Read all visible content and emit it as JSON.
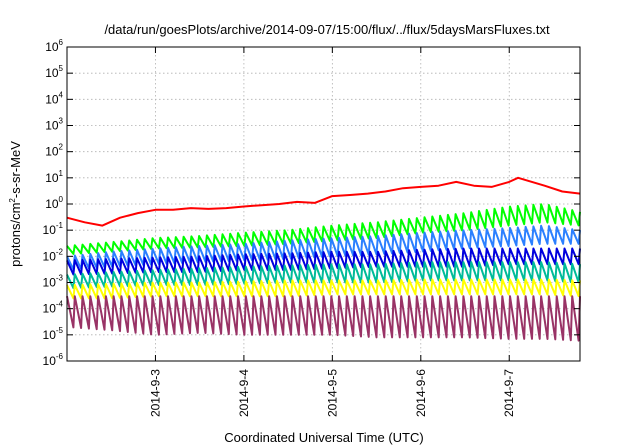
{
  "chart_data": {
    "type": "line",
    "title": "/data/run/goesPlots/archive/2014-09-07/15:00/flux/../flux/5daysMarsFluxes.txt",
    "xlabel": "Coordinated Universal Time (UTC)",
    "ylabel": "protons/cm2-s-sr-MeV",
    "ylabel_parts": [
      "protons/cm",
      "2",
      "-s-sr-MeV"
    ],
    "y_scale": "log",
    "ylim": [
      1e-06,
      1000000.0
    ],
    "y_ticks": [
      {
        "base": "10",
        "exp": "-6"
      },
      {
        "base": "10",
        "exp": "-5"
      },
      {
        "base": "10",
        "exp": "-4"
      },
      {
        "base": "10",
        "exp": "-3"
      },
      {
        "base": "10",
        "exp": "-2"
      },
      {
        "base": "10",
        "exp": "-1"
      },
      {
        "base": "10",
        "exp": "0"
      },
      {
        "base": "10",
        "exp": "1"
      },
      {
        "base": "10",
        "exp": "2"
      },
      {
        "base": "10",
        "exp": "3"
      },
      {
        "base": "10",
        "exp": "4"
      },
      {
        "base": "10",
        "exp": "5"
      },
      {
        "base": "10",
        "exp": "6"
      }
    ],
    "x_unit": "days since 2014-09-02 00:00 UTC",
    "xlim": [
      0.0,
      5.8
    ],
    "x_ticks": [
      {
        "value": 1.0,
        "label": "2014-9-3"
      },
      {
        "value": 2.0,
        "label": "2014-9-4"
      },
      {
        "value": 3.0,
        "label": "2014-9-5"
      },
      {
        "value": 4.0,
        "label": "2014-9-6"
      },
      {
        "value": 5.0,
        "label": "2014-9-7"
      }
    ],
    "grid": true,
    "series": [
      {
        "color": "#ff0000",
        "sawtooth": false,
        "x": [
          0.0,
          0.2,
          0.4,
          0.6,
          0.8,
          1.0,
          1.2,
          1.4,
          1.6,
          1.8,
          2.0,
          2.2,
          2.4,
          2.6,
          2.8,
          3.0,
          3.2,
          3.4,
          3.6,
          3.8,
          4.0,
          4.2,
          4.4,
          4.6,
          4.8,
          5.0,
          5.1,
          5.2,
          5.4,
          5.6,
          5.8
        ],
        "values": [
          0.3,
          0.2,
          0.15,
          0.3,
          0.45,
          0.6,
          0.6,
          0.7,
          0.65,
          0.7,
          0.8,
          0.9,
          1.0,
          1.2,
          1.1,
          2.0,
          2.2,
          2.5,
          3.0,
          4.0,
          4.5,
          5.0,
          7.0,
          5.0,
          4.5,
          7.0,
          10.0,
          8.0,
          5.0,
          3.0,
          2.5
        ]
      },
      {
        "color": "#00ff00",
        "sawtooth": true,
        "teeth": 66,
        "x": [
          0.0,
          0.5,
          1.0,
          1.5,
          2.0,
          2.5,
          3.0,
          3.5,
          4.0,
          4.5,
          5.0,
          5.4,
          5.8
        ],
        "peak": [
          0.025,
          0.035,
          0.05,
          0.06,
          0.08,
          0.1,
          0.15,
          0.2,
          0.3,
          0.45,
          0.8,
          1.0,
          0.5
        ],
        "trough": [
          0.012,
          0.015,
          0.02,
          0.022,
          0.025,
          0.03,
          0.04,
          0.05,
          0.08,
          0.1,
          0.15,
          0.2,
          0.15
        ]
      },
      {
        "color": "#2b7fff",
        "sawtooth": true,
        "teeth": 66,
        "x": [
          0.0,
          0.5,
          1.0,
          1.5,
          2.0,
          2.5,
          3.0,
          3.5,
          4.0,
          4.5,
          5.0,
          5.4,
          5.8
        ],
        "peak": [
          0.01,
          0.015,
          0.02,
          0.025,
          0.03,
          0.04,
          0.05,
          0.06,
          0.08,
          0.1,
          0.12,
          0.15,
          0.1
        ],
        "trough": [
          0.003,
          0.004,
          0.005,
          0.006,
          0.007,
          0.008,
          0.01,
          0.012,
          0.015,
          0.02,
          0.025,
          0.03,
          0.03
        ]
      },
      {
        "color": "#0000dd",
        "sawtooth": true,
        "teeth": 66,
        "x": [
          0.0,
          0.5,
          1.0,
          1.5,
          2.0,
          2.5,
          3.0,
          3.5,
          4.0,
          4.5,
          5.0,
          5.4,
          5.8
        ],
        "peak": [
          0.007,
          0.008,
          0.009,
          0.01,
          0.012,
          0.013,
          0.015,
          0.015,
          0.018,
          0.02,
          0.02,
          0.02,
          0.02
        ],
        "trough": [
          0.002,
          0.0022,
          0.0025,
          0.0025,
          0.003,
          0.003,
          0.0035,
          0.004,
          0.004,
          0.004,
          0.005,
          0.005,
          0.005
        ]
      },
      {
        "color": "#00bb99",
        "sawtooth": true,
        "teeth": 66,
        "x": [
          0.0,
          0.5,
          1.0,
          1.5,
          2.0,
          2.5,
          3.0,
          3.5,
          4.0,
          4.5,
          5.0,
          5.4,
          5.8
        ],
        "peak": [
          0.002,
          0.0025,
          0.003,
          0.0035,
          0.004,
          0.0045,
          0.005,
          0.005,
          0.006,
          0.006,
          0.006,
          0.006,
          0.005
        ],
        "trough": [
          0.0006,
          0.0007,
          0.0008,
          0.0008,
          0.0009,
          0.001,
          0.001,
          0.001,
          0.0012,
          0.0012,
          0.0012,
          0.0012,
          0.001
        ]
      },
      {
        "color": "#ffff00",
        "sawtooth": true,
        "teeth": 66,
        "x": [
          0.0,
          0.5,
          1.0,
          1.5,
          2.0,
          2.5,
          3.0,
          3.5,
          4.0,
          4.5,
          5.0,
          5.4,
          5.8
        ],
        "peak": [
          0.0008,
          0.0009,
          0.001,
          0.001,
          0.0011,
          0.0012,
          0.0012,
          0.0012,
          0.0013,
          0.0013,
          0.0013,
          0.0013,
          0.0012
        ],
        "trough": [
          0.00025,
          0.00025,
          0.0003,
          0.0003,
          0.0003,
          0.0003,
          0.00035,
          0.00035,
          0.00035,
          0.00035,
          0.00035,
          0.00035,
          0.0003
        ]
      },
      {
        "color": "#993366",
        "sawtooth": true,
        "teeth": 66,
        "x": [
          0.0,
          0.5,
          1.0,
          1.5,
          2.0,
          2.5,
          3.0,
          3.5,
          4.0,
          4.5,
          5.0,
          5.4,
          5.8
        ],
        "peak": [
          0.0003,
          0.0003,
          0.0003,
          0.0003,
          0.0003,
          0.0003,
          0.0003,
          0.0003,
          0.0003,
          0.0003,
          0.0003,
          0.0003,
          0.0003
        ],
        "trough": [
          2e-05,
          1.5e-05,
          1e-05,
          1.2e-05,
          1e-05,
          1e-05,
          1e-05,
          8e-06,
          8e-06,
          8e-06,
          7e-06,
          7e-06,
          6e-06
        ]
      }
    ]
  }
}
